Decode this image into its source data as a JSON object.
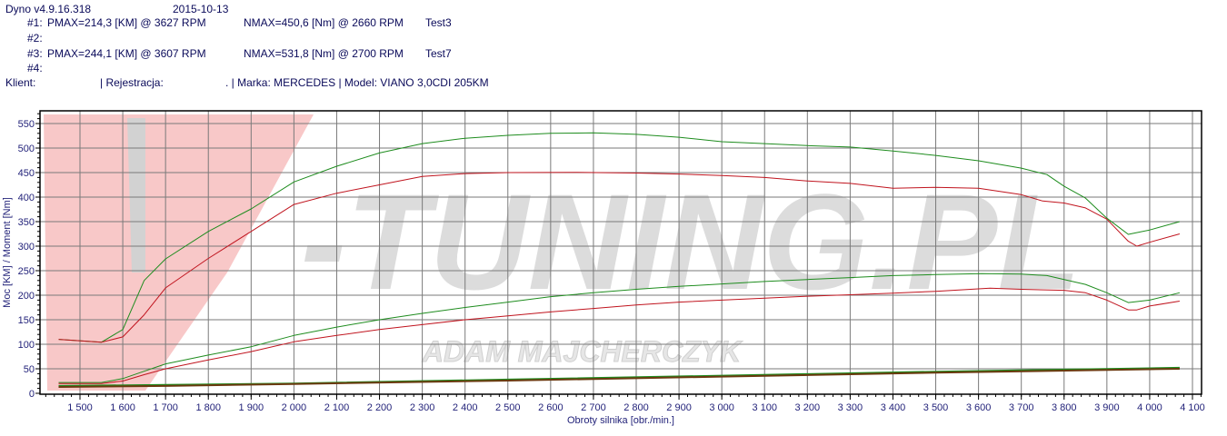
{
  "header": {
    "app_version": "Dyno v4.9.16.318",
    "date": "2015-10-13",
    "runs": [
      {
        "id": "#1:",
        "pmax": "PMAX=214,3 [KM] @ 3627 RPM",
        "nmax": "NMAX=450,6 [Nm] @ 2660 RPM",
        "test": "Test3"
      },
      {
        "id": "#2:",
        "pmax": "",
        "nmax": "",
        "test": ""
      },
      {
        "id": "#3:",
        "pmax": "PMAX=244,1 [KM] @ 3607 RPM",
        "nmax": "NMAX=531,8 [Nm] @ 2700 RPM",
        "test": "Test7"
      },
      {
        "id": "#4:",
        "pmax": "",
        "nmax": "",
        "test": ""
      }
    ],
    "client_label": "Klient:",
    "registration_label": "| Rejestracja:",
    "make_model": ". | Marka: MERCEDES | Model: VIANO 3,0CDI 205KM"
  },
  "watermark": {
    "logo": "V-TUNING.PL",
    "subtitle": "ADAM MAJCHERCZYK"
  },
  "chart_data": {
    "type": "line",
    "xlabel": "Obroty silnika [obr./min.]",
    "ylabel": "Moc [KM] / Moment [Nm]",
    "xlim": [
      1405,
      4120
    ],
    "ylim": [
      0,
      575
    ],
    "xticks": [
      1500,
      1600,
      1700,
      1800,
      1900,
      2000,
      2100,
      2200,
      2300,
      2400,
      2500,
      2600,
      2700,
      2800,
      2900,
      3000,
      3100,
      3200,
      3300,
      3400,
      3500,
      3600,
      3700,
      3800,
      3900,
      4000,
      4100
    ],
    "xtick_labels": [
      "1 500",
      "1 600",
      "1 700",
      "1 800",
      "1 900",
      "2 000",
      "2 100",
      "2 200",
      "2 300",
      "2 400",
      "2 500",
      "2 600",
      "2 700",
      "2 800",
      "2 900",
      "3 000",
      "3 100",
      "3 200",
      "3 300",
      "3 400",
      "3 500",
      "3 600",
      "3 700",
      "3 800",
      "3 900",
      "4 000",
      "4 100"
    ],
    "yticks": [
      0,
      50,
      100,
      150,
      200,
      250,
      300,
      350,
      400,
      450,
      500,
      550
    ],
    "grid": true,
    "colors": {
      "test3": "#c0141e",
      "test7": "#1e8c1e",
      "loss": "#6b3a10"
    },
    "series": [
      {
        "run": "Test7",
        "quantity": "torque",
        "color": "#1e8c1e",
        "x": [
          1450,
          1550,
          1600,
          1650,
          1700,
          1800,
          1900,
          2000,
          2100,
          2200,
          2300,
          2400,
          2500,
          2600,
          2700,
          2800,
          2900,
          3000,
          3100,
          3200,
          3300,
          3400,
          3500,
          3600,
          3700,
          3760,
          3800,
          3850,
          3900,
          3950,
          4000,
          4070
        ],
        "y": [
          110,
          104,
          130,
          230,
          274,
          330,
          376,
          431,
          463,
          490,
          509,
          520,
          526,
          530,
          531,
          528,
          522,
          513,
          509,
          505,
          502,
          494,
          485,
          474,
          459,
          446,
          422,
          398,
          357,
          324,
          333,
          350
        ]
      },
      {
        "run": "Test3",
        "quantity": "torque",
        "color": "#c0141e",
        "x": [
          1450,
          1550,
          1600,
          1650,
          1700,
          1800,
          1900,
          2000,
          2100,
          2200,
          2300,
          2400,
          2500,
          2660,
          2800,
          2900,
          3000,
          3100,
          3200,
          3300,
          3400,
          3500,
          3600,
          3700,
          3750,
          3800,
          3850,
          3900,
          3950,
          3970,
          4000,
          4070
        ],
        "y": [
          110,
          104,
          115,
          160,
          215,
          275,
          330,
          385,
          408,
          425,
          442,
          448,
          450,
          450.6,
          449,
          447,
          444,
          440,
          433,
          428,
          418,
          420,
          418,
          405,
          392,
          388,
          378,
          355,
          310,
          300,
          308,
          325
        ]
      },
      {
        "run": "Test7",
        "quantity": "power",
        "color": "#1e8c1e",
        "x": [
          1450,
          1550,
          1600,
          1650,
          1700,
          1800,
          1900,
          2000,
          2100,
          2200,
          2300,
          2400,
          2500,
          2600,
          2700,
          2800,
          2900,
          3000,
          3100,
          3200,
          3300,
          3400,
          3500,
          3607,
          3700,
          3760,
          3800,
          3850,
          3900,
          3950,
          4000,
          4070
        ],
        "y": [
          22,
          22,
          30,
          45,
          60,
          78,
          95,
          118,
          135,
          150,
          163,
          175,
          186,
          197,
          205,
          212,
          218,
          223,
          228,
          232,
          236,
          240,
          242,
          244.1,
          243,
          240,
          232,
          222,
          205,
          185,
          190,
          205
        ]
      },
      {
        "run": "Test3",
        "quantity": "power",
        "color": "#c0141e",
        "x": [
          1450,
          1550,
          1600,
          1650,
          1700,
          1800,
          1900,
          2000,
          2100,
          2200,
          2300,
          2400,
          2500,
          2600,
          2700,
          2800,
          2900,
          3000,
          3100,
          3200,
          3300,
          3400,
          3500,
          3627,
          3700,
          3800,
          3850,
          3900,
          3950,
          3970,
          4000,
          4070
        ],
        "y": [
          20,
          20,
          25,
          38,
          50,
          68,
          85,
          105,
          118,
          130,
          140,
          150,
          158,
          166,
          173,
          180,
          186,
          190,
          194,
          198,
          201,
          204,
          208,
          214.3,
          212,
          210,
          205,
          190,
          170,
          170,
          178,
          188
        ]
      },
      {
        "run": "Test7",
        "quantity": "loss",
        "color": "#1e8c1e",
        "x": [
          1450,
          1700,
          2000,
          2500,
          3000,
          3500,
          4000,
          4070
        ],
        "y": [
          15,
          17,
          20,
          28,
          36,
          44,
          51,
          52
        ]
      },
      {
        "run": "Test3",
        "quantity": "loss",
        "color": "#6b3a10",
        "x": [
          1450,
          1700,
          2000,
          2500,
          3000,
          3500,
          4000,
          4070
        ],
        "y": [
          13,
          15,
          19,
          26,
          34,
          42,
          49,
          50
        ]
      }
    ]
  }
}
